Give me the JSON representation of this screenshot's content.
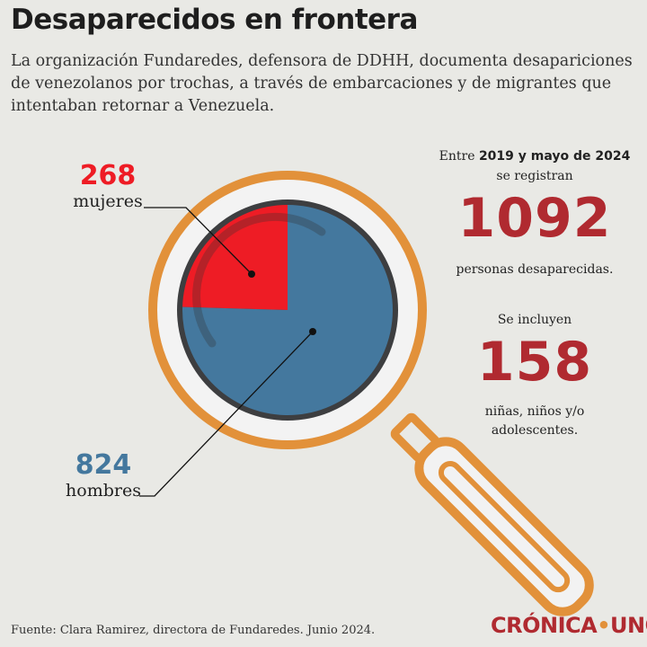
{
  "title": "Desaparecidos en frontera",
  "subtitle": "La organización Fundaredes, defensora de DDHH, documenta desapariciones de venezolanos por trochas, a través de embarcaciones y de migrantes que intentaban retornar a Venezuela.",
  "chart_data": {
    "type": "pie",
    "categories": [
      "mujeres",
      "hombres"
    ],
    "values": [
      268,
      824
    ],
    "colors": [
      "#ee1c25",
      "#44789e"
    ]
  },
  "right": {
    "line1_prefix": "Entre ",
    "line1_bold": "2019 y mayo de 2024",
    "line2": "se registran",
    "total": "1092",
    "line3": "personas desaparecidas.",
    "line4": "Se incluyen",
    "minors": "158",
    "line5": "niñas, niños y/o",
    "line6": "adolescentes."
  },
  "footer": "Fuente: Clara Ramirez, directora de Fundaredes. Junio 2024.",
  "logo": {
    "left": "CRÓNICA",
    "dot": "•",
    "right": "UNO"
  },
  "colors": {
    "accent": "#b02a30",
    "orange": "#e2913a",
    "ring": "#3d3e40"
  }
}
